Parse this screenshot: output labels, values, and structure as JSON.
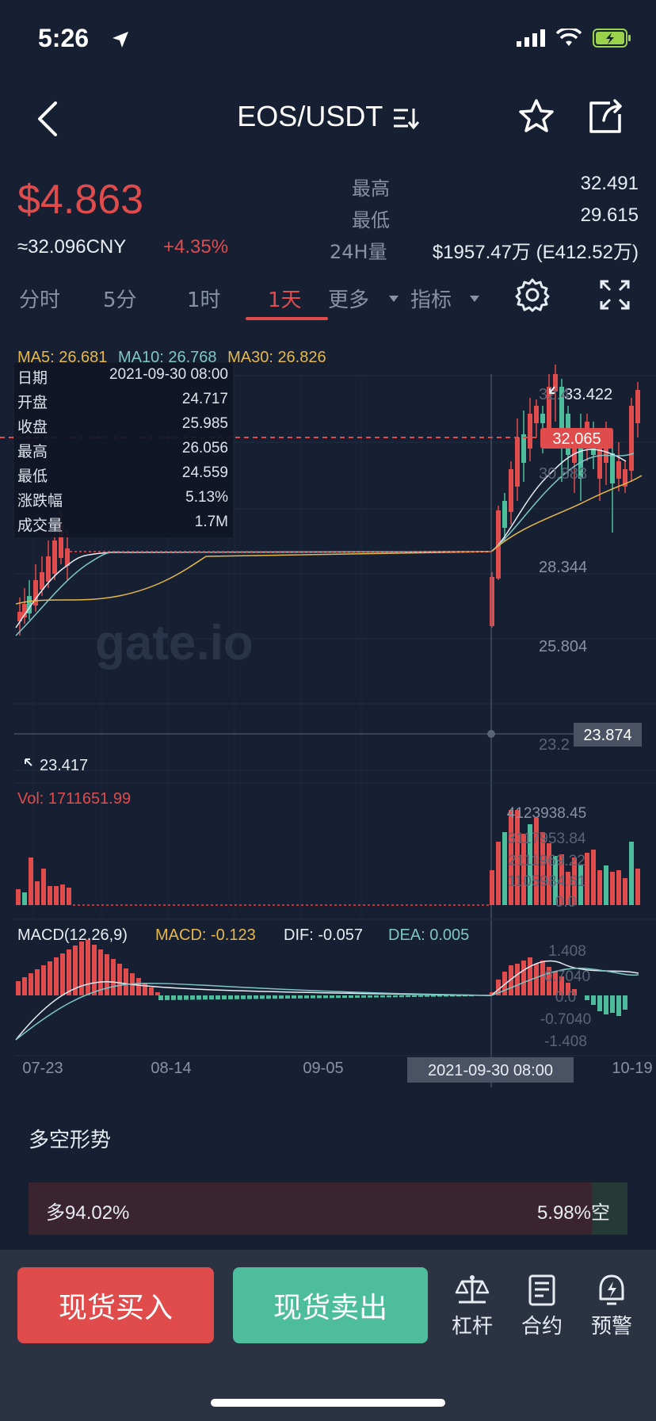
{
  "status": {
    "time": "5:26",
    "icons": [
      "location-arrow-icon",
      "signal-icon",
      "wifi-icon",
      "battery-charging-icon"
    ]
  },
  "nav": {
    "title": "EOS/USDT",
    "icons": [
      "back-icon",
      "pair-switch-icon",
      "star-icon",
      "share-icon"
    ]
  },
  "ticker": {
    "price": "$4.863",
    "cny": "≈32.096CNY",
    "change": "+4.35%",
    "high_label": "最高",
    "high_value": "32.491",
    "low_label": "最低",
    "low_value": "29.615",
    "vol_label": "24H量",
    "vol_value": "$1957.47万 (E412.52万)"
  },
  "tabs": [
    {
      "label": "分时",
      "active": false
    },
    {
      "label": "5分",
      "active": false
    },
    {
      "label": "1时",
      "active": false
    },
    {
      "label": "1天",
      "active": true
    },
    {
      "label": "更多",
      "active": false,
      "dropdown": true
    },
    {
      "label": "指标",
      "active": false,
      "dropdown": true
    }
  ],
  "chart": {
    "ma": {
      "ma5": "MA5: 26.681",
      "ma10": "MA10: 26.768",
      "ma30": "MA30: 26.826"
    },
    "info": [
      {
        "k": "日期",
        "v": "2021-09-30 08:00"
      },
      {
        "k": "开盘",
        "v": "24.717"
      },
      {
        "k": "收盘",
        "v": "25.985"
      },
      {
        "k": "最高",
        "v": "26.056"
      },
      {
        "k": "最低",
        "v": "24.559"
      },
      {
        "k": "涨跌幅",
        "v": "5.13%"
      },
      {
        "k": "成交量",
        "v": "1.7M"
      }
    ],
    "price_labels": [
      "33.422",
      "32.065",
      "28.344",
      "25.804",
      "23.874",
      "23.417"
    ],
    "partial_labels": [
      "32.4",
      "30.883",
      "23.2"
    ],
    "vol_label": "Vol: 1711651.99",
    "vol_axis": [
      "4123938.45",
      "3117953.84",
      "2111969.22",
      "1105984.61",
      "0.0"
    ],
    "macd_label": "MACD(12,26,9)",
    "macd_value": "MACD: -0.123",
    "dif_value": "DIF: -0.057",
    "dea_value": "DEA: 0.005",
    "macd_axis": [
      "1.408",
      "0.7040",
      "0.0",
      "-0.7040",
      "-1.408"
    ],
    "x_labels": [
      "07-23",
      "08-14",
      "09-05",
      "10-19"
    ],
    "cursor_date": "2021-09-30 08:00",
    "watermark": "gate.io",
    "colors": {
      "up": "#e04b4b",
      "down": "#4dbd9b",
      "ma5": "#e8ecf3",
      "ma10": "#7fc6c7",
      "ma30": "#e6b84a"
    },
    "macd_colors": {
      "macd": "#e6b84a",
      "dif": "#e8ecf3",
      "dea": "#7fc6c7"
    }
  },
  "sentiment": {
    "title": "多空形势",
    "long": "多94.02%",
    "short": "5.98%空",
    "long_fraction": 0.9402
  },
  "actions": {
    "buy": "现货买入",
    "sell": "现货卖出",
    "tools": [
      {
        "label": "杠杆",
        "icon": "scale-icon"
      },
      {
        "label": "合约",
        "icon": "contract-icon"
      },
      {
        "label": "预警",
        "icon": "alert-icon"
      }
    ]
  }
}
